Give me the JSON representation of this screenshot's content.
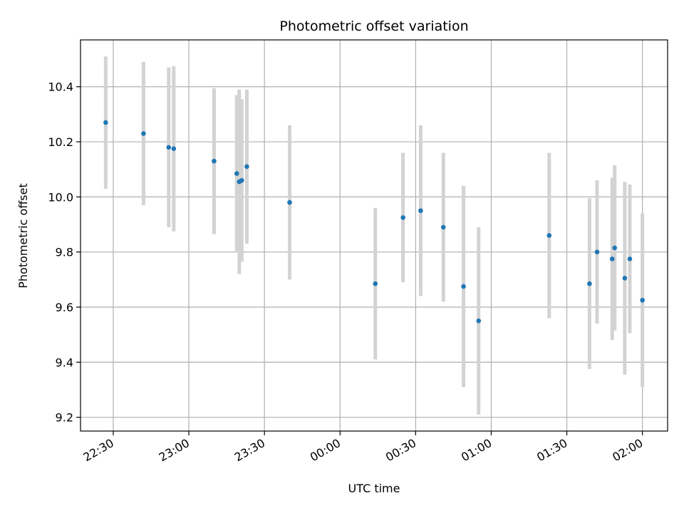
{
  "chart_data": {
    "type": "scatter",
    "title": "Photometric offset variation",
    "xlabel": "UTC time",
    "ylabel": "Photometric offset",
    "grid": true,
    "xlim": [
      "22:17",
      "02:10"
    ],
    "ylim": [
      9.15,
      10.57
    ],
    "x_ticks": [
      "22:30",
      "23:00",
      "23:30",
      "00:00",
      "00:30",
      "01:00",
      "01:30",
      "02:00"
    ],
    "y_ticks": [
      "9.2",
      "9.4",
      "9.6",
      "9.8",
      "10.0",
      "10.2",
      "10.4"
    ],
    "series": [
      {
        "marker_color": "#1f77b4",
        "errorbar_color": "#d3d3d3",
        "points": [
          {
            "x": "22:27",
            "y": 10.27,
            "err": 0.24
          },
          {
            "x": "22:42",
            "y": 10.23,
            "err": 0.26
          },
          {
            "x": "22:52",
            "y": 10.18,
            "err": 0.29
          },
          {
            "x": "22:54",
            "y": 10.175,
            "err": 0.3
          },
          {
            "x": "23:10",
            "y": 10.13,
            "err": 0.265
          },
          {
            "x": "23:19",
            "y": 10.085,
            "err": 0.285
          },
          {
            "x": "23:20",
            "y": 10.055,
            "err": 0.335
          },
          {
            "x": "23:21",
            "y": 10.06,
            "err": 0.295
          },
          {
            "x": "23:23",
            "y": 10.11,
            "err": 0.28
          },
          {
            "x": "23:40",
            "y": 9.98,
            "err": 0.28
          },
          {
            "x": "00:14",
            "y": 9.685,
            "err": 0.275
          },
          {
            "x": "00:25",
            "y": 9.925,
            "err": 0.235
          },
          {
            "x": "00:32",
            "y": 9.95,
            "err": 0.31
          },
          {
            "x": "00:41",
            "y": 9.89,
            "err": 0.27
          },
          {
            "x": "00:49",
            "y": 9.675,
            "err": 0.365
          },
          {
            "x": "00:55",
            "y": 9.55,
            "err": 0.34
          },
          {
            "x": "01:23",
            "y": 9.86,
            "err": 0.3
          },
          {
            "x": "01:39",
            "y": 9.685,
            "err": 0.31
          },
          {
            "x": "01:42",
            "y": 9.8,
            "err": 0.26
          },
          {
            "x": "01:48",
            "y": 9.775,
            "err": 0.295
          },
          {
            "x": "01:49",
            "y": 9.815,
            "err": 0.3
          },
          {
            "x": "01:53",
            "y": 9.705,
            "err": 0.35
          },
          {
            "x": "01:55",
            "y": 9.775,
            "err": 0.27
          },
          {
            "x": "02:00",
            "y": 9.625,
            "err": 0.315
          }
        ]
      }
    ]
  }
}
